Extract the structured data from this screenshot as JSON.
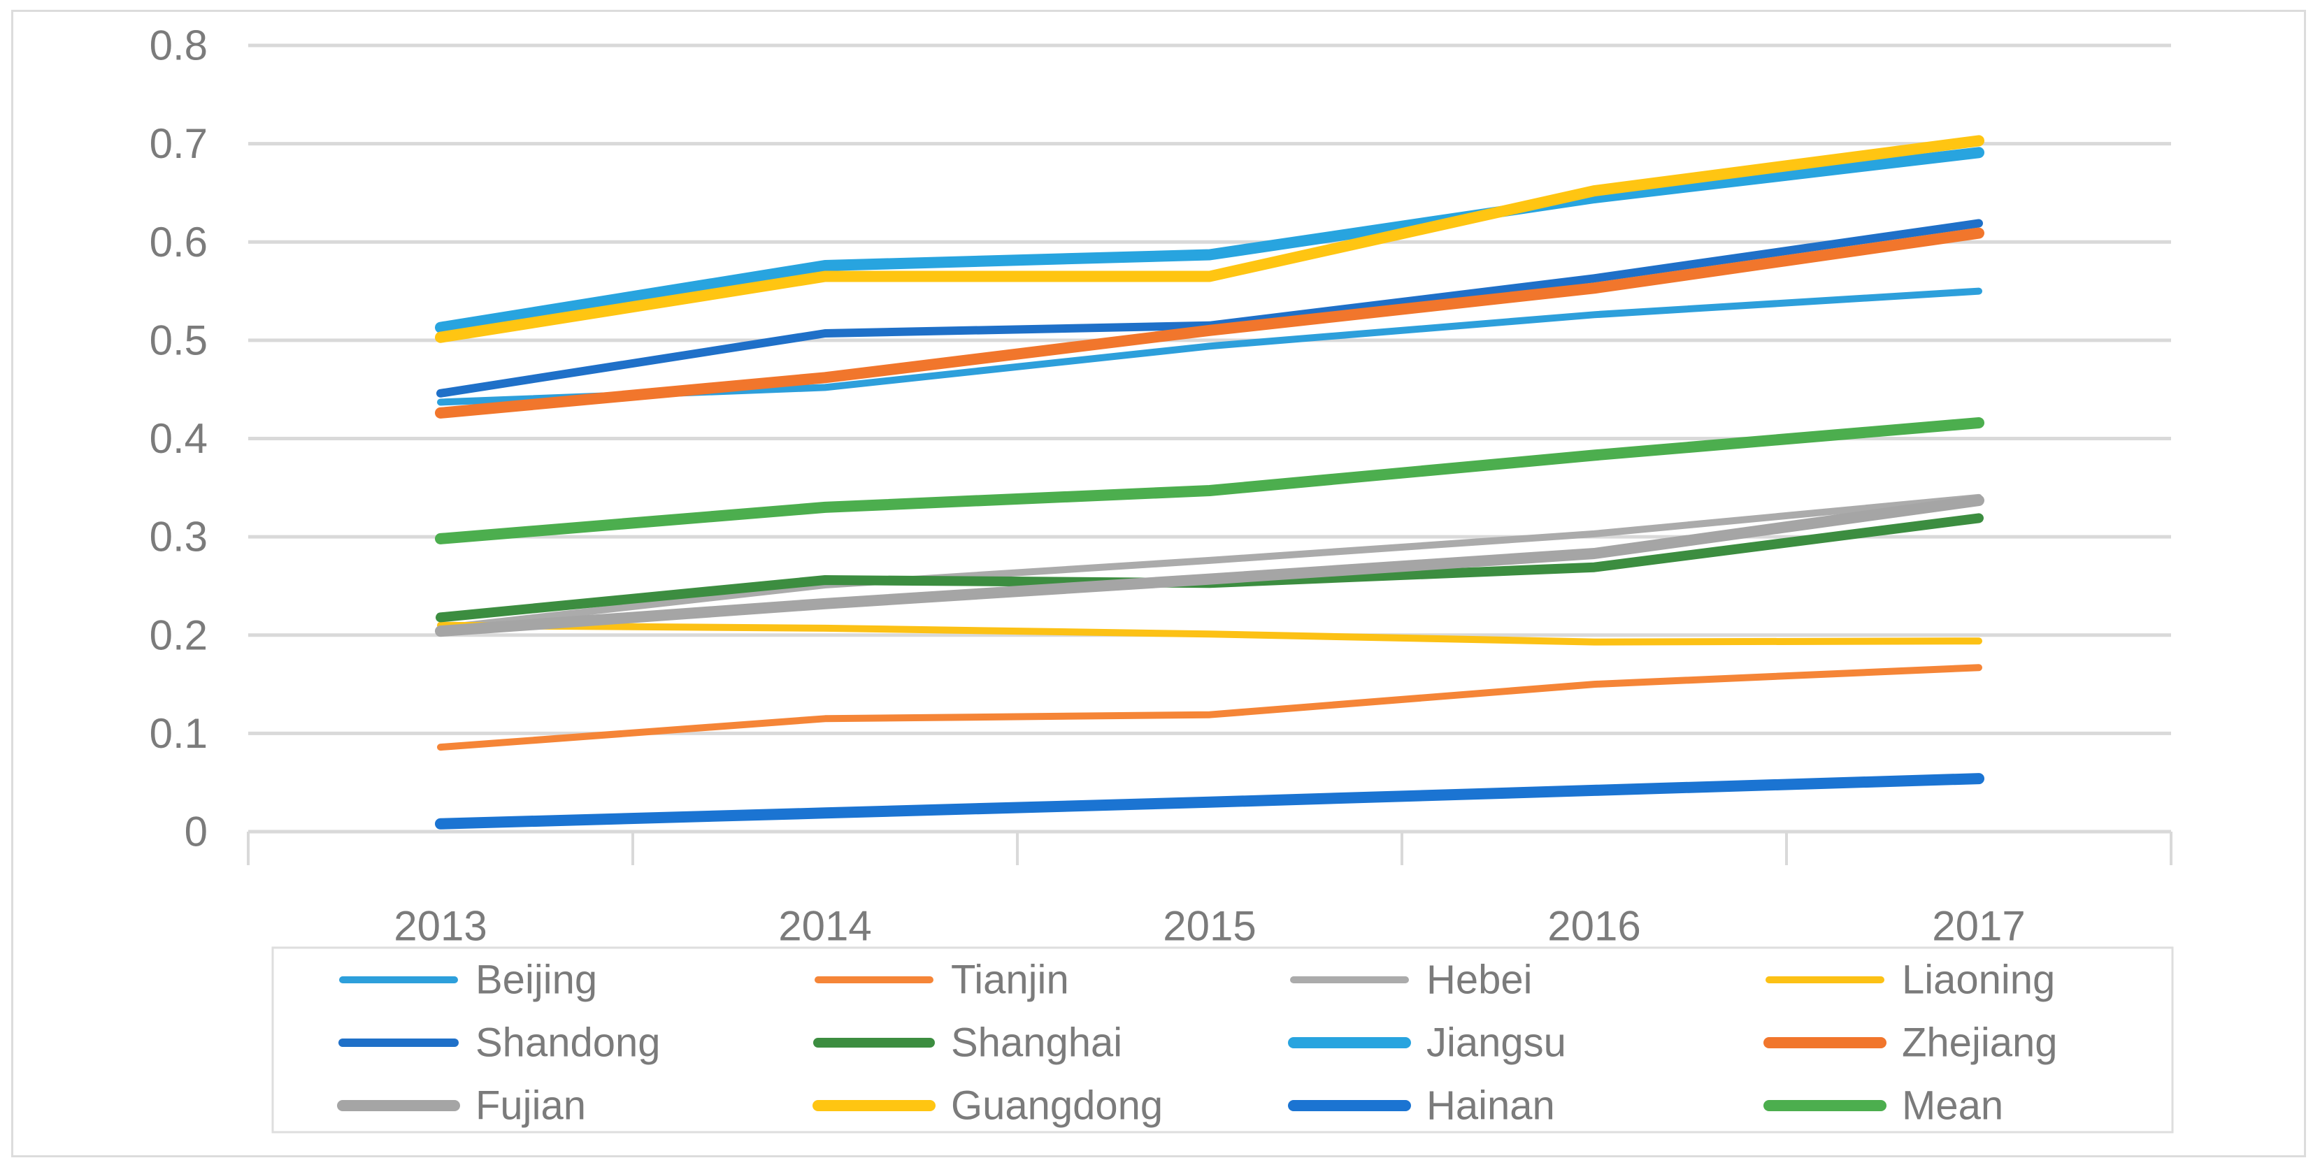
{
  "figure": {
    "background": "#FFFFFF",
    "border_color": "#DCDCDC"
  },
  "chart_data": {
    "type": "line",
    "title": "",
    "xlabel": "",
    "ylabel": "",
    "categories": [
      "2013",
      "2014",
      "2015",
      "2016",
      "2017"
    ],
    "ylim": [
      0,
      0.8
    ],
    "ytick_labels": [
      "0",
      "0.1",
      "0.2",
      "0.3",
      "0.4",
      "0.5",
      "0.6",
      "0.7",
      "0.8"
    ],
    "grid": true,
    "gridline_color": "#D9D9D9",
    "axis_text_color": "#7B7B7B",
    "legend_position": "bottom",
    "legend_border_color": "#DEDEDE",
    "series": [
      {
        "name": "Beijing",
        "color": "#2D9FDB",
        "width": 10,
        "values": [
          0.437,
          0.452,
          0.494,
          0.526,
          0.55
        ]
      },
      {
        "name": "Tianjin",
        "color": "#F58537",
        "width": 10,
        "values": [
          0.086,
          0.115,
          0.119,
          0.15,
          0.167
        ]
      },
      {
        "name": "Hebei",
        "color": "#ABABAB",
        "width": 10,
        "values": [
          0.207,
          0.251,
          0.276,
          0.303,
          0.34
        ]
      },
      {
        "name": "Liaoning",
        "color": "#FCC115",
        "width": 10,
        "values": [
          0.21,
          0.207,
          0.201,
          0.193,
          0.194
        ]
      },
      {
        "name": "Shandong",
        "color": "#1F70C8",
        "width": 12,
        "values": [
          0.446,
          0.507,
          0.515,
          0.563,
          0.619
        ]
      },
      {
        "name": "Shanghai",
        "color": "#3C8D40",
        "width": 14,
        "values": [
          0.218,
          0.256,
          0.253,
          0.269,
          0.319
        ]
      },
      {
        "name": "Jiangsu",
        "color": "#28A4DF",
        "width": 16,
        "values": [
          0.513,
          0.576,
          0.587,
          0.645,
          0.691
        ]
      },
      {
        "name": "Zhejiang",
        "color": "#F1762C",
        "width": 16,
        "values": [
          0.426,
          0.462,
          0.51,
          0.553,
          0.609
        ]
      },
      {
        "name": "Fujian",
        "color": "#A5A5A5",
        "width": 16,
        "values": [
          0.204,
          0.232,
          0.257,
          0.283,
          0.337
        ]
      },
      {
        "name": "Guangdong",
        "color": "#FFC512",
        "width": 16,
        "values": [
          0.503,
          0.565,
          0.565,
          0.652,
          0.703
        ]
      },
      {
        "name": "Hainan",
        "color": "#1B74D2",
        "width": 16,
        "values": [
          0.008,
          0.019,
          0.03,
          0.042,
          0.054
        ]
      },
      {
        "name": "Mean",
        "color": "#4CAE4E",
        "width": 16,
        "values": [
          0.298,
          0.33,
          0.347,
          0.383,
          0.416
        ]
      }
    ]
  }
}
